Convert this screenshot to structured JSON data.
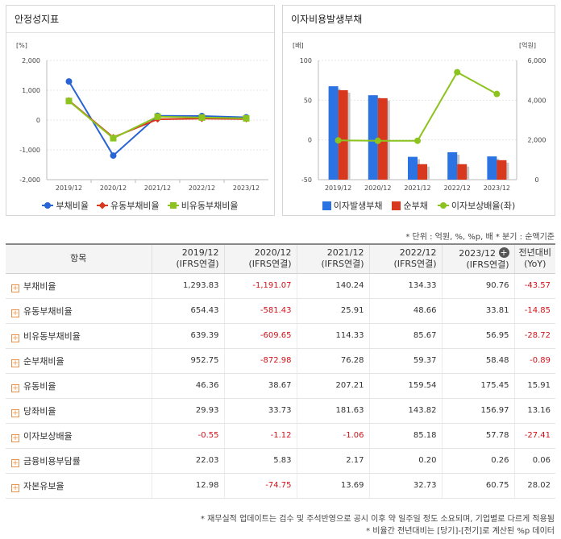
{
  "charts": {
    "left_title": "안정성지표",
    "right_title": "이자비용발생부채"
  },
  "chart_data": [
    {
      "type": "line",
      "title": "안정성지표",
      "ylabel": "[%]",
      "categories": [
        "2019/12",
        "2020/12",
        "2021/12",
        "2022/12",
        "2023/12"
      ],
      "ylim": [
        -2000,
        2000
      ],
      "yticks": [
        "2,000",
        "1,000",
        "0",
        "-1,000",
        "-2,000"
      ],
      "series": [
        {
          "name": "부채비율",
          "values": [
            1293.83,
            -1191.07,
            140.24,
            134.33,
            90.76
          ],
          "color": "#2a63d4",
          "marker": "circle"
        },
        {
          "name": "유동부채비율",
          "values": [
            654.43,
            -581.43,
            25.91,
            48.66,
            33.81
          ],
          "color": "#d8381e",
          "marker": "diamond"
        },
        {
          "name": "비유동부채비율",
          "values": [
            639.39,
            -609.65,
            114.33,
            85.67,
            56.95
          ],
          "color": "#8cc31f",
          "marker": "square"
        }
      ]
    },
    {
      "type": "bar",
      "title": "이자비용발생부채",
      "ylabel": "[배]",
      "y2label": "[억원]",
      "categories": [
        "2019/12",
        "2020/12",
        "2021/12",
        "2022/12",
        "2023/12"
      ],
      "ylim": [
        -50,
        100
      ],
      "y2lim": [
        0,
        6000
      ],
      "yticks": [
        "100",
        "50",
        "0",
        "-50"
      ],
      "y2ticks": [
        "6,000",
        "4,000",
        "2,000",
        "0"
      ],
      "series": [
        {
          "name": "이자발생부채",
          "axis": "right",
          "values": [
            4700,
            4250,
            1150,
            1380,
            1170
          ],
          "color": "#2b72e3"
        },
        {
          "name": "순부채",
          "axis": "right",
          "values": [
            4500,
            4100,
            780,
            780,
            980
          ],
          "color": "#d8381e"
        },
        {
          "name": "이자보상배율(좌)",
          "axis": "left",
          "type": "line",
          "values": [
            -0.55,
            -1.12,
            -1.06,
            85.18,
            57.78
          ],
          "color": "#8cc31f"
        }
      ]
    }
  ],
  "meta": "* 단위 : 억원, %, %p, 배     * 분기 : 순액기준",
  "table": {
    "header_item": "항목",
    "periods": [
      {
        "year": "2019/12",
        "basis": "(IFRS연결)"
      },
      {
        "year": "2020/12",
        "basis": "(IFRS연결)"
      },
      {
        "year": "2021/12",
        "basis": "(IFRS연결)"
      },
      {
        "year": "2022/12",
        "basis": "(IFRS연결)"
      },
      {
        "year": "2023/12",
        "basis": "(IFRS연결)"
      }
    ],
    "yoy": {
      "line1": "전년대비",
      "line2": "(YoY)"
    },
    "expand_symbol": "+",
    "rows": [
      {
        "name": "부채비율",
        "values": [
          "1,293.83",
          "-1,191.07",
          "140.24",
          "134.33",
          "90.76",
          "-43.57"
        ]
      },
      {
        "name": "유동부채비율",
        "values": [
          "654.43",
          "-581.43",
          "25.91",
          "48.66",
          "33.81",
          "-14.85"
        ]
      },
      {
        "name": "비유동부채비율",
        "values": [
          "639.39",
          "-609.65",
          "114.33",
          "85.67",
          "56.95",
          "-28.72"
        ]
      },
      {
        "name": "순부채비율",
        "values": [
          "952.75",
          "-872.98",
          "76.28",
          "59.37",
          "58.48",
          "-0.89"
        ]
      },
      {
        "name": "유동비율",
        "values": [
          "46.36",
          "38.67",
          "207.21",
          "159.54",
          "175.45",
          "15.91"
        ]
      },
      {
        "name": "당좌비율",
        "values": [
          "29.93",
          "33.73",
          "181.63",
          "143.82",
          "156.97",
          "13.16"
        ]
      },
      {
        "name": "이자보상배율",
        "values": [
          "-0.55",
          "-1.12",
          "-1.06",
          "85.18",
          "57.78",
          "-27.41"
        ]
      },
      {
        "name": "금융비용부담률",
        "values": [
          "22.03",
          "5.83",
          "2.17",
          "0.20",
          "0.26",
          "0.06"
        ]
      },
      {
        "name": "자본유보율",
        "values": [
          "12.98",
          "-74.75",
          "13.69",
          "32.73",
          "60.75",
          "28.02"
        ]
      }
    ]
  },
  "footnotes": [
    "* 재무실적 업데이트는 검수 및 주석반영으로 공시 이후 약 일주일 정도 소요되며, 기업별로 다르게 적용됨",
    "* 비율간 전년대비는 [당기]-[전기]로 계산된 %p 데이터"
  ]
}
